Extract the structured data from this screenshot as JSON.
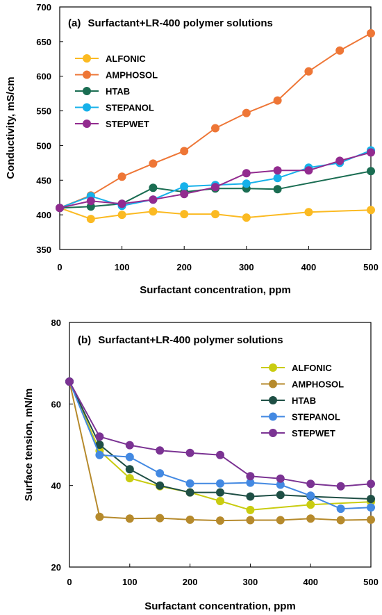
{
  "chart_data": [
    {
      "type": "line",
      "panel": "(a)",
      "title": "Surfactant+LR-400 polymer solutions",
      "xlabel": "Surfactant concentration, ppm",
      "ylabel": "Conductivity, mS/cm",
      "xlim": [
        0,
        500
      ],
      "ylim": [
        350,
        700
      ],
      "xticks": [
        0,
        100,
        200,
        300,
        400,
        500
      ],
      "yticks": [
        350,
        400,
        450,
        500,
        550,
        600,
        650,
        700
      ],
      "grid": false,
      "legend_position": "upper-left",
      "x": [
        0,
        50,
        100,
        150,
        200,
        250,
        300,
        350,
        400,
        450,
        500
      ],
      "series": [
        {
          "name": "ALFONIC",
          "color": "#FBBA22",
          "values": [
            410,
            394,
            400,
            405,
            401,
            401,
            396,
            null,
            404,
            null,
            407
          ]
        },
        {
          "name": "AMPHOSOL",
          "color": "#EE7636",
          "values": [
            410,
            428,
            455,
            474,
            492,
            525,
            547,
            565,
            607,
            637,
            662
          ]
        },
        {
          "name": "HTAB",
          "color": "#1A6D52",
          "values": [
            410,
            412,
            416,
            439,
            433,
            438,
            438,
            437,
            null,
            null,
            463
          ]
        },
        {
          "name": "STEPANOL",
          "color": "#16B1EA",
          "values": [
            410,
            427,
            413,
            422,
            441,
            443,
            445,
            453,
            468,
            475,
            493
          ]
        },
        {
          "name": "STEPWET",
          "color": "#922B8F",
          "values": [
            410,
            420,
            416,
            422,
            430,
            440,
            460,
            464,
            464,
            478,
            490
          ]
        }
      ]
    },
    {
      "type": "line",
      "panel": "(b)",
      "title": "Surfactant+LR-400 polymer solutions",
      "xlabel": "Surfactant concentration, ppm",
      "ylabel": "Surface tension, mN/m",
      "xlim": [
        0,
        500
      ],
      "ylim": [
        20,
        80
      ],
      "xticks": [
        0,
        100,
        200,
        300,
        400,
        500
      ],
      "yticks": [
        20,
        40,
        60,
        80
      ],
      "grid": false,
      "legend_position": "right",
      "x": [
        0,
        50,
        100,
        150,
        200,
        250,
        300,
        350,
        400,
        450,
        500
      ],
      "series": [
        {
          "name": "ALFONIC",
          "color": "#C9CC10",
          "values": [
            65.5,
            48.5,
            41.8,
            39.8,
            38.3,
            36.2,
            34.0,
            null,
            35.3,
            null,
            36.0
          ]
        },
        {
          "name": "AMPHOSOL",
          "color": "#B68A2C",
          "values": [
            65.5,
            32.3,
            31.9,
            32.0,
            31.6,
            31.4,
            31.5,
            31.5,
            31.9,
            31.5,
            31.6
          ]
        },
        {
          "name": "HTAB",
          "color": "#1F4F45",
          "values": [
            65.5,
            50.0,
            44.0,
            40.0,
            38.3,
            38.3,
            37.3,
            37.7,
            37.3,
            null,
            36.7
          ]
        },
        {
          "name": "STEPANOL",
          "color": "#4389E2",
          "values": [
            65.5,
            47.5,
            47.0,
            43.0,
            40.5,
            40.5,
            40.7,
            40.2,
            37.5,
            34.3,
            34.6
          ]
        },
        {
          "name": "STEPWET",
          "color": "#7B3393",
          "values": [
            65.5,
            52.0,
            49.9,
            48.6,
            48.0,
            47.5,
            42.3,
            41.7,
            40.4,
            39.8,
            40.4
          ]
        }
      ]
    }
  ]
}
